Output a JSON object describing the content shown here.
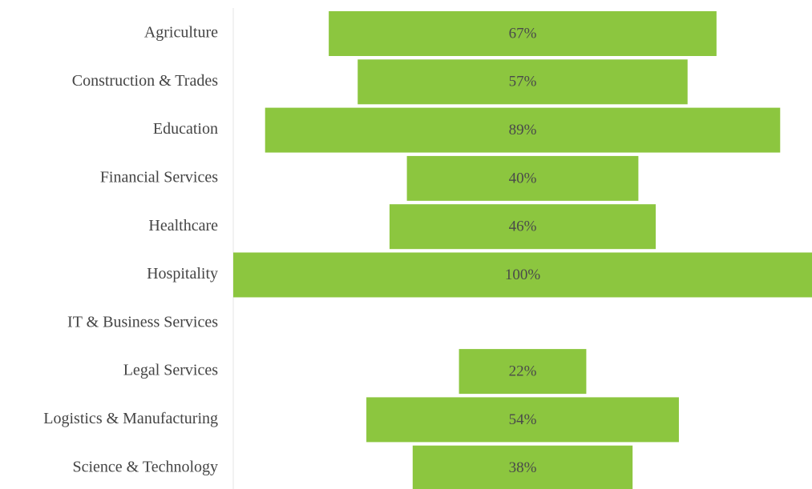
{
  "chart_data": {
    "type": "funnel",
    "categories": [
      "Agriculture",
      "Construction & Trades",
      "Education",
      "Financial Services",
      "Healthcare",
      "Hospitality",
      "IT & Business Services",
      "Legal Services",
      "Logistics & Manufacturing",
      "Science & Technology"
    ],
    "values": [
      67,
      57,
      89,
      40,
      46,
      100,
      null,
      22,
      54,
      38
    ],
    "value_labels": [
      "67%",
      "57%",
      "89%",
      "40%",
      "46%",
      "100%",
      null,
      "22%",
      "54%",
      "38%"
    ],
    "color": "#8cc63f"
  }
}
